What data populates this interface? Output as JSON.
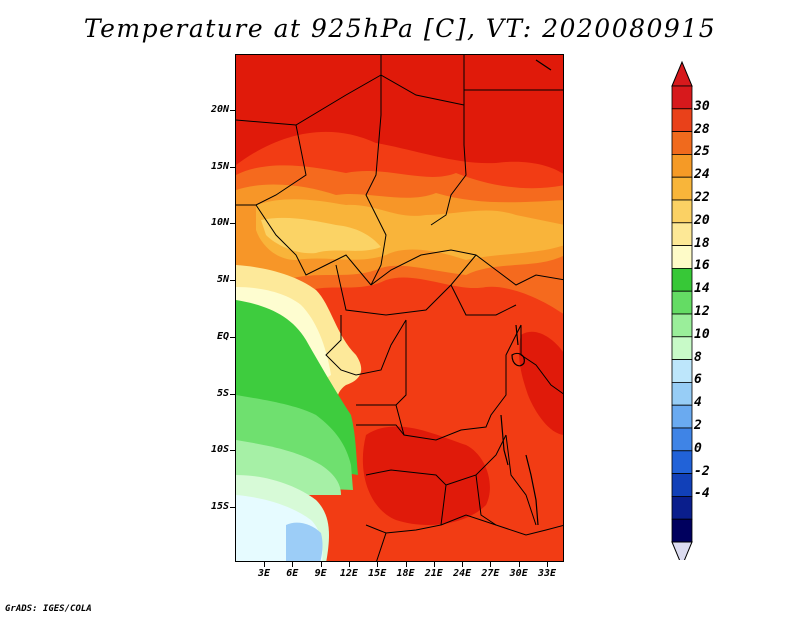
{
  "title": "Temperature at 925hPa [C], VT: 2020080915",
  "footer": "GrADS: IGES/COLA",
  "map": {
    "lat_labels": [
      "20N",
      "15N",
      "10N",
      "5N",
      "EQ",
      "5S",
      "10S",
      "15S"
    ],
    "lon_labels": [
      "3E",
      "6E",
      "9E",
      "12E",
      "15E",
      "18E",
      "21E",
      "24E",
      "27E",
      "30E",
      "33E"
    ],
    "field_colors": {
      "t30": "#e01a0a",
      "t28": "#f23c14",
      "t26": "#f56a1e",
      "t25": "#f79628",
      "t24": "#f9b43a",
      "t22": "#fbd365",
      "t20": "#fde99a",
      "t18": "#fefdd0",
      "t16": "#3ecc3e",
      "t14": "#6fe06f",
      "t12": "#a6f0a6",
      "t10": "#d7fad7",
      "t8": "#e6fbff",
      "t6": "#9ccdf7",
      "border": "#000000"
    }
  },
  "colorbar": {
    "labels": [
      "30",
      "28",
      "25",
      "24",
      "22",
      "20",
      "18",
      "16",
      "14",
      "12",
      "10",
      "8",
      "6",
      "4",
      "2",
      "0",
      "-2",
      "-4"
    ],
    "colors": [
      "#d7191c",
      "#e9411a",
      "#f06a1d",
      "#f59a26",
      "#f8b53a",
      "#fbd164",
      "#fde896",
      "#fefbc8",
      "#37c837",
      "#64dc64",
      "#9aee9a",
      "#c8fac8",
      "#bde6fb",
      "#97cdf6",
      "#6aaaf0",
      "#3f84e6",
      "#2162d8",
      "#1140b8",
      "#0a1e8c",
      "#00005e"
    ],
    "top_arrow_color": "#d7191c",
    "bottom_arrow_color": "#dcdcf0"
  }
}
